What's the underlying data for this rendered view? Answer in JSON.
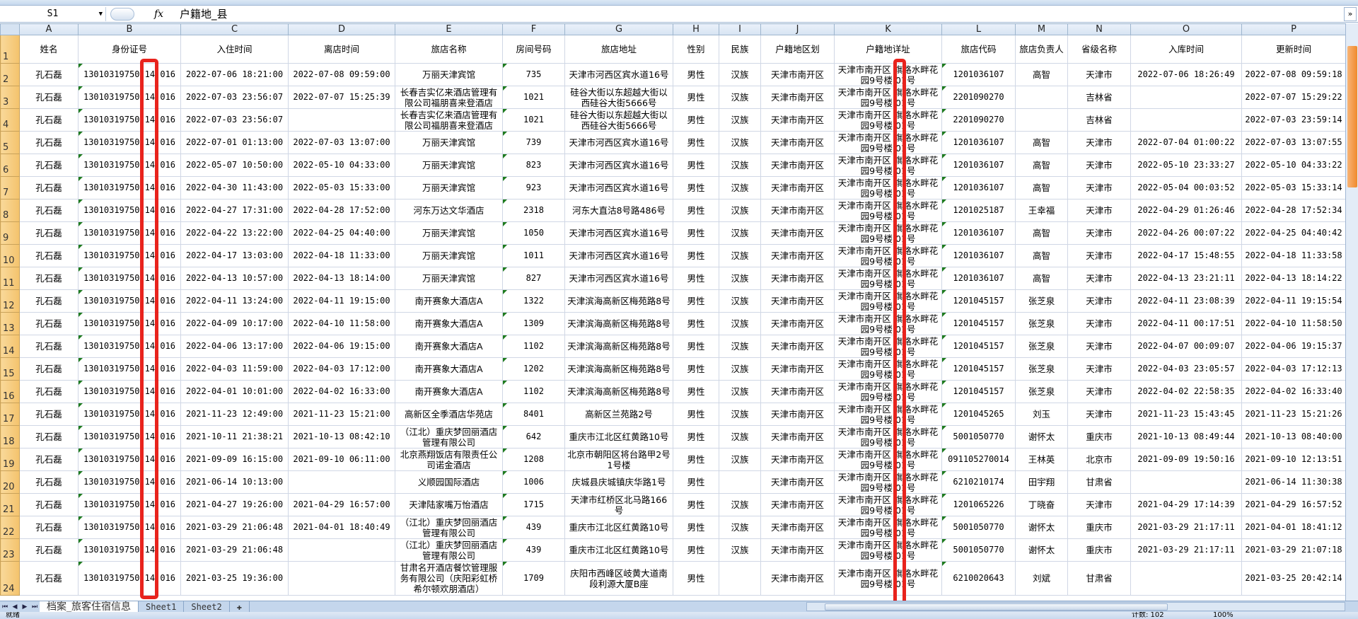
{
  "formula_bar": {
    "name_box": "S1",
    "fx_label": "fx",
    "content": "户籍地_县"
  },
  "columns": [
    "A",
    "B",
    "C",
    "D",
    "E",
    "F",
    "G",
    "H",
    "I",
    "J",
    "K",
    "L",
    "M",
    "N",
    "O",
    "P"
  ],
  "headers": [
    "姓名",
    "身份证号",
    "入住时间",
    "离店时间",
    "旅店名称",
    "房间号码",
    "旅店地址",
    "性别",
    "民族",
    "户籍地区划",
    "户籍地详址",
    "旅店代码",
    "旅店负责人",
    "省级名称",
    "入库时间",
    "更新时间"
  ],
  "rows": [
    {
      "num": "2",
      "cells": [
        "孔石磊",
        "13010319750 14 016",
        "2022-07-06 18:21:00",
        "2022-07-08 09:59:00",
        "万丽天津宾馆",
        "735",
        "天津市河西区宾水道16号",
        "男性",
        "汉族",
        "天津市南开区",
        "天津市南开区 旗路水畔花园9号楼 01号",
        "1201036107",
        "高智",
        "天津市",
        "2022-07-06 18:26:49",
        "2022-07-08 09:59:18"
      ]
    },
    {
      "num": "3",
      "cells": [
        "孔石磊",
        "13010319750 14 016",
        "2022-07-03 23:56:07",
        "2022-07-07 15:25:39",
        "长春吉实亿来酒店管理有限公司福朋喜来登酒店",
        "1021",
        "硅谷大街以东超越大街以西硅谷大街5666号",
        "男性",
        "汉族",
        "天津市南开区",
        "天津市南开区 旗路水畔花园9号楼 01号",
        "2201090270",
        "",
        "吉林省",
        "",
        "2022-07-07 15:29:22"
      ]
    },
    {
      "num": "4",
      "cells": [
        "孔石磊",
        "13010319750 14 016",
        "2022-07-03 23:56:07",
        "",
        "长春吉实亿来酒店管理有限公司福朋喜来登酒店",
        "1021",
        "硅谷大街以东超越大街以西硅谷大街5666号",
        "男性",
        "汉族",
        "天津市南开区",
        "天津市南开区 旗路水畔花园9号楼 01号",
        "2201090270",
        "",
        "吉林省",
        "",
        "2022-07-03 23:59:14"
      ]
    },
    {
      "num": "5",
      "cells": [
        "孔石磊",
        "13010319750 14 016",
        "2022-07-01 01:13:00",
        "2022-07-03 13:07:00",
        "万丽天津宾馆",
        "739",
        "天津市河西区宾水道16号",
        "男性",
        "汉族",
        "天津市南开区",
        "天津市南开区 旗路水畔花园9号楼 01号",
        "1201036107",
        "高智",
        "天津市",
        "2022-07-04 01:00:22",
        "2022-07-03 13:07:55"
      ]
    },
    {
      "num": "6",
      "cells": [
        "孔石磊",
        "13010319750 14 016",
        "2022-05-07 10:50:00",
        "2022-05-10 04:33:00",
        "万丽天津宾馆",
        "823",
        "天津市河西区宾水道16号",
        "男性",
        "汉族",
        "天津市南开区",
        "天津市南开区 旗路水畔花园9号楼 01号",
        "1201036107",
        "高智",
        "天津市",
        "2022-05-10 23:33:27",
        "2022-05-10 04:33:22"
      ]
    },
    {
      "num": "7",
      "cells": [
        "孔石磊",
        "13010319750 14 016",
        "2022-04-30 11:43:00",
        "2022-05-03 15:33:00",
        "万丽天津宾馆",
        "923",
        "天津市河西区宾水道16号",
        "男性",
        "汉族",
        "天津市南开区",
        "天津市南开区 旗路水畔花园9号楼 01号",
        "1201036107",
        "高智",
        "天津市",
        "2022-05-04 00:03:52",
        "2022-05-03 15:33:14"
      ]
    },
    {
      "num": "8",
      "cells": [
        "孔石磊",
        "13010319750 14 016",
        "2022-04-27 17:31:00",
        "2022-04-28 17:52:00",
        "河东万达文华酒店",
        "2318",
        "河东大直沽8号路486号",
        "男性",
        "汉族",
        "天津市南开区",
        "天津市南开区 旗路水畔花园9号楼 01号",
        "1201025187",
        "王幸福",
        "天津市",
        "2022-04-29 01:26:46",
        "2022-04-28 17:52:34"
      ]
    },
    {
      "num": "9",
      "cells": [
        "孔石磊",
        "13010319750 14 016",
        "2022-04-22 13:22:00",
        "2022-04-25 04:40:00",
        "万丽天津宾馆",
        "1050",
        "天津市河西区宾水道16号",
        "男性",
        "汉族",
        "天津市南开区",
        "天津市南开区 旗路水畔花园9号楼 01号",
        "1201036107",
        "高智",
        "天津市",
        "2022-04-26 00:07:22",
        "2022-04-25 04:40:42"
      ]
    },
    {
      "num": "10",
      "cells": [
        "孔石磊",
        "13010319750 14 016",
        "2022-04-17 13:03:00",
        "2022-04-18 11:33:00",
        "万丽天津宾馆",
        "1011",
        "天津市河西区宾水道16号",
        "男性",
        "汉族",
        "天津市南开区",
        "天津市南开区 旗路水畔花园9号楼 01号",
        "1201036107",
        "高智",
        "天津市",
        "2022-04-17 15:48:55",
        "2022-04-18 11:33:58"
      ]
    },
    {
      "num": "11",
      "cells": [
        "孔石磊",
        "13010319750 14 016",
        "2022-04-13 10:57:00",
        "2022-04-13 18:14:00",
        "万丽天津宾馆",
        "827",
        "天津市河西区宾水道16号",
        "男性",
        "汉族",
        "天津市南开区",
        "天津市南开区 旗路水畔花园9号楼 01号",
        "1201036107",
        "高智",
        "天津市",
        "2022-04-13 23:21:11",
        "2022-04-13 18:14:22"
      ]
    },
    {
      "num": "12",
      "cells": [
        "孔石磊",
        "13010319750 14 016",
        "2022-04-11 13:24:00",
        "2022-04-11 19:15:00",
        "南开赛象大酒店A",
        "1322",
        "天津滨海高新区梅苑路8号",
        "男性",
        "汉族",
        "天津市南开区",
        "天津市南开区 旗路水畔花园9号楼 01号",
        "1201045157",
        "张芝泉",
        "天津市",
        "2022-04-11 23:08:39",
        "2022-04-11 19:15:54"
      ]
    },
    {
      "num": "13",
      "cells": [
        "孔石磊",
        "13010319750 14 016",
        "2022-04-09 10:17:00",
        "2022-04-10 11:58:00",
        "南开赛象大酒店A",
        "1309",
        "天津滨海高新区梅苑路8号",
        "男性",
        "汉族",
        "天津市南开区",
        "天津市南开区 旗路水畔花园9号楼 01号",
        "1201045157",
        "张芝泉",
        "天津市",
        "2022-04-11 00:17:51",
        "2022-04-10 11:58:50"
      ]
    },
    {
      "num": "14",
      "cells": [
        "孔石磊",
        "13010319750 14 016",
        "2022-04-06 13:17:00",
        "2022-04-06 19:15:00",
        "南开赛象大酒店A",
        "1102",
        "天津滨海高新区梅苑路8号",
        "男性",
        "汉族",
        "天津市南开区",
        "天津市南开区 旗路水畔花园9号楼 01号",
        "1201045157",
        "张芝泉",
        "天津市",
        "2022-04-07 00:09:07",
        "2022-04-06 19:15:37"
      ]
    },
    {
      "num": "15",
      "cells": [
        "孔石磊",
        "13010319750 14 016",
        "2022-04-03 11:59:00",
        "2022-04-03 17:12:00",
        "南开赛象大酒店A",
        "1202",
        "天津滨海高新区梅苑路8号",
        "男性",
        "汉族",
        "天津市南开区",
        "天津市南开区 旗路水畔花园9号楼 01号",
        "1201045157",
        "张芝泉",
        "天津市",
        "2022-04-03 23:05:57",
        "2022-04-03 17:12:13"
      ]
    },
    {
      "num": "16",
      "cells": [
        "孔石磊",
        "13010319750 14 016",
        "2022-04-01 10:01:00",
        "2022-04-02 16:33:00",
        "南开赛象大酒店A",
        "1102",
        "天津滨海高新区梅苑路8号",
        "男性",
        "汉族",
        "天津市南开区",
        "天津市南开区 旗路水畔花园9号楼 01号",
        "1201045157",
        "张芝泉",
        "天津市",
        "2022-04-02 22:58:35",
        "2022-04-02 16:33:40"
      ]
    },
    {
      "num": "17",
      "cells": [
        "孔石磊",
        "13010319750 14 016",
        "2021-11-23 12:49:00",
        "2021-11-23 15:21:00",
        "高新区全季酒店华苑店",
        "8401",
        "高新区兰苑路2号",
        "男性",
        "汉族",
        "天津市南开区",
        "天津市南开区 旗路水畔花园9号楼 01号",
        "1201045265",
        "刘玉",
        "天津市",
        "2021-11-23 15:43:45",
        "2021-11-23 15:21:26"
      ]
    },
    {
      "num": "18",
      "cells": [
        "孔石磊",
        "13010319750 14 016",
        "2021-10-11 21:38:21",
        "2021-10-13 08:42:10",
        "（江北）重庆梦回丽酒店管理有限公司",
        "642",
        "重庆市江北区红黄路10号",
        "男性",
        "汉族",
        "天津市南开区",
        "天津市南开区 旗路水畔花园9号楼 01号",
        "5001050770",
        "谢怀太",
        "重庆市",
        "2021-10-13 08:49:44",
        "2021-10-13 08:40:00"
      ]
    },
    {
      "num": "19",
      "cells": [
        "孔石磊",
        "13010319750 14 016",
        "2021-09-09 16:15:00",
        "2021-09-10 06:11:00",
        "北京燕翔饭店有限责任公司诺金酒店",
        "1208",
        "北京市朝阳区将台路甲2号1号楼",
        "男性",
        "汉族",
        "天津市南开区",
        "天津市南开区 旗路水畔花园9号楼 01号",
        "091105270014",
        "王林英",
        "北京市",
        "2021-09-09 19:50:16",
        "2021-09-10 12:13:51"
      ]
    },
    {
      "num": "20",
      "cells": [
        "孔石磊",
        "13010319750 14 016",
        "2021-06-14 10:13:00",
        "",
        "义顺园国际酒店",
        "1006",
        "庆城县庆城镇庆华路1号",
        "男性",
        "",
        "天津市南开区",
        "天津市南开区 旗路水畔花园9号楼 01号",
        "6210210174",
        "田宇翔",
        "甘肃省",
        "",
        "2021-06-14 11:30:38"
      ]
    },
    {
      "num": "21",
      "cells": [
        "孔石磊",
        "13010319750 14 016",
        "2021-04-27 19:26:00",
        "2021-04-29 16:57:00",
        "天津陆家嘴万怡酒店",
        "1715",
        "天津市红桥区北马路166号",
        "男性",
        "汉族",
        "天津市南开区",
        "天津市南开区 旗路水畔花园9号楼 01号",
        "1201065226",
        "丁晓奋",
        "天津市",
        "2021-04-29 17:14:39",
        "2021-04-29 16:57:52"
      ]
    },
    {
      "num": "22",
      "cells": [
        "孔石磊",
        "13010319750 14 016",
        "2021-03-29 21:06:48",
        "2021-04-01 18:40:49",
        "（江北）重庆梦回丽酒店管理有限公司",
        "439",
        "重庆市江北区红黄路10号",
        "男性",
        "汉族",
        "天津市南开区",
        "天津市南开区 旗路水畔花园9号楼 01号",
        "5001050770",
        "谢怀太",
        "重庆市",
        "2021-03-29 21:17:11",
        "2021-04-01 18:41:12"
      ]
    },
    {
      "num": "23",
      "cells": [
        "孔石磊",
        "13010319750 14 016",
        "2021-03-29 21:06:48",
        "",
        "（江北）重庆梦回丽酒店管理有限公司",
        "439",
        "重庆市江北区红黄路10号",
        "男性",
        "汉族",
        "天津市南开区",
        "天津市南开区 旗路水畔花园9号楼 01号",
        "5001050770",
        "谢怀太",
        "重庆市",
        "2021-03-29 21:17:11",
        "2021-03-29 21:07:18"
      ]
    },
    {
      "num": "24",
      "cells": [
        "孔石磊",
        "13010319750 14 016",
        "2021-03-25 19:36:00",
        "",
        "甘肃名开酒店餐饮管理服务有限公司（庆阳彩虹桥希尔顿欢朋酒店）",
        "1709",
        "庆阳市西峰区岐黄大道南段利源大厦B座",
        "男性",
        "",
        "天津市南开区",
        "天津市南开区 旗路水畔花园9号楼 01号",
        "6210020643",
        "刘斌",
        "甘肃省",
        "",
        "2021-03-25 20:42:14"
      ]
    }
  ],
  "sheet_tabs": [
    "档案_旅客住宿信息",
    "Sheet1",
    "Sheet2"
  ],
  "status_bar": {
    "ready": "就绪",
    "count": "计数: 102",
    "zoom": "100%"
  },
  "colors": {
    "highlight_box": "#e8231d",
    "row_header": "#f4c36d",
    "col_header": "#d6e3f2",
    "text_indicator": "#1e7b1e"
  }
}
